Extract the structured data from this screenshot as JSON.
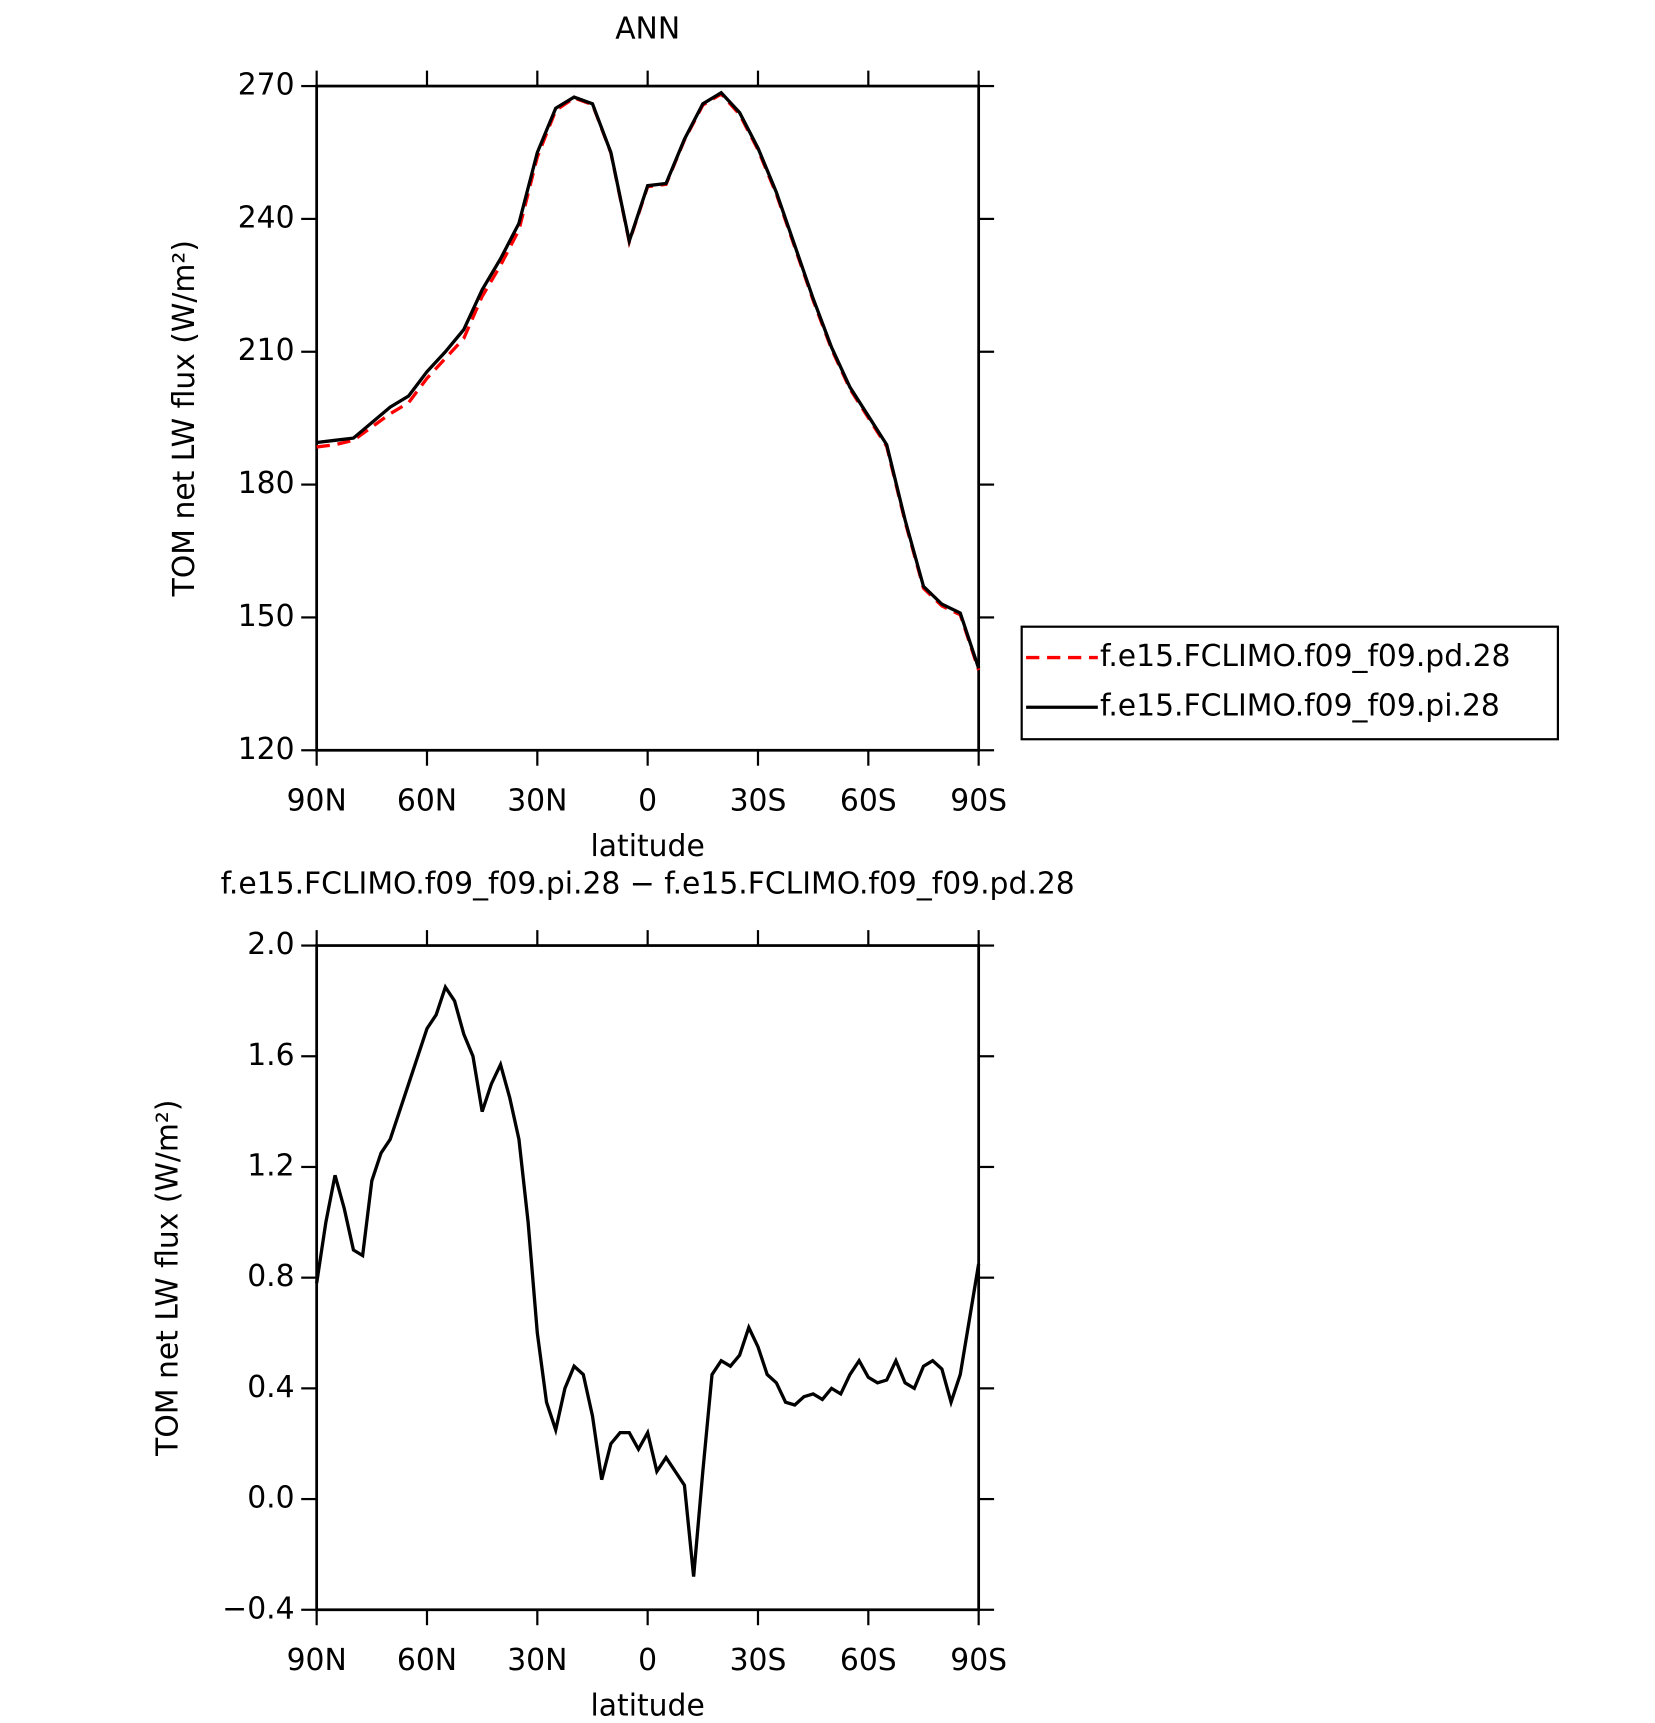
{
  "chart_data": [
    {
      "type": "line",
      "title": "ANN",
      "xlabel": "latitude",
      "ylabel": "TOM net LW flux (W/m²)",
      "x": [
        90,
        85,
        80,
        75,
        70,
        65,
        60,
        55,
        50,
        45,
        40,
        35,
        30,
        25,
        20,
        15,
        10,
        5,
        0,
        -5,
        -10,
        -15,
        -20,
        -25,
        -30,
        -35,
        -40,
        -45,
        -50,
        -55,
        -60,
        -65,
        -70,
        -75,
        -80,
        -85,
        -90
      ],
      "series": [
        {
          "name": "f.e15.FCLIMO.f09_f09.pd.28",
          "color": "#ff0000",
          "dash": true,
          "values": [
            188.5,
            189,
            190,
            193,
            196,
            198.5,
            204,
            208.5,
            213,
            222.5,
            229.5,
            237.5,
            254,
            264.5,
            267.3,
            265.8,
            254.9,
            234.8,
            247.3,
            247.8,
            257.8,
            265.7,
            268.2,
            263.6,
            255.6,
            245.6,
            233.6,
            221.6,
            210.6,
            201.6,
            195.1,
            188.6,
            171.6,
            156.6,
            152.6,
            150.6,
            138.1
          ]
        },
        {
          "name": "f.e15.FCLIMO.f09_f09.pi.28",
          "color": "#000000",
          "dash": false,
          "values": [
            189.5,
            190,
            190.5,
            194,
            197.5,
            200,
            205.5,
            210,
            215,
            224,
            231,
            239,
            255,
            265,
            267.5,
            266,
            255,
            235,
            247.5,
            248,
            258,
            266,
            268.5,
            264,
            256,
            246,
            234,
            222,
            211,
            202,
            195.5,
            189,
            172,
            157,
            153,
            151,
            138.5
          ]
        }
      ],
      "xlim": [
        90,
        -90
      ],
      "xticks": [
        {
          "value": 90,
          "label": "90N"
        },
        {
          "value": 60,
          "label": "60N"
        },
        {
          "value": 30,
          "label": "30N"
        },
        0,
        {
          "value": -30,
          "label": "30S"
        },
        {
          "value": -60,
          "label": "60S"
        },
        {
          "value": -90,
          "label": "90S"
        }
      ],
      "ylim": [
        120,
        270
      ],
      "yticks": [
        120,
        150,
        180,
        210,
        240,
        270
      ],
      "legend": "right"
    },
    {
      "type": "line",
      "title": "f.e15.FCLIMO.f09_f09.pi.28 − f.e15.FCLIMO.f09_f09.pd.28",
      "xlabel": "latitude",
      "ylabel": "TOM net LW flux (W/m²)",
      "x": [
        90,
        87.5,
        85,
        82.5,
        80,
        77.5,
        75,
        72.5,
        70,
        67.5,
        65,
        62.5,
        60,
        57.5,
        55,
        52.5,
        50,
        47.5,
        45,
        42.5,
        40,
        37.5,
        35,
        32.5,
        30,
        27.5,
        25,
        22.5,
        20,
        17.5,
        15,
        12.5,
        10,
        7.5,
        5,
        2.5,
        0,
        -2.5,
        -5,
        -7.5,
        -10,
        -12.5,
        -15,
        -17.5,
        -20,
        -22.5,
        -25,
        -27.5,
        -30,
        -32.5,
        -35,
        -37.5,
        -40,
        -42.5,
        -45,
        -47.5,
        -50,
        -52.5,
        -55,
        -57.5,
        -60,
        -62.5,
        -65,
        -67.5,
        -70,
        -72.5,
        -75,
        -77.5,
        -80,
        -82.5,
        -85,
        -87.5,
        -90
      ],
      "series": [
        {
          "color": "#000000",
          "values": [
            0.78,
            1.0,
            1.17,
            1.05,
            0.9,
            0.88,
            1.15,
            1.25,
            1.3,
            1.4,
            1.5,
            1.6,
            1.7,
            1.75,
            1.85,
            1.8,
            1.68,
            1.6,
            1.4,
            1.5,
            1.57,
            1.45,
            1.3,
            1.0,
            0.6,
            0.35,
            0.25,
            0.4,
            0.48,
            0.45,
            0.3,
            0.07,
            0.2,
            0.24,
            0.24,
            0.18,
            0.24,
            0.1,
            0.15,
            0.1,
            0.05,
            -0.28,
            0.1,
            0.45,
            0.5,
            0.48,
            0.52,
            0.62,
            0.55,
            0.45,
            0.42,
            0.35,
            0.34,
            0.37,
            0.38,
            0.36,
            0.4,
            0.38,
            0.45,
            0.5,
            0.44,
            0.42,
            0.43,
            0.5,
            0.42,
            0.4,
            0.48,
            0.5,
            0.47,
            0.35,
            0.45,
            0.65,
            0.85
          ]
        }
      ],
      "xlim": [
        90,
        -90
      ],
      "xticks": [
        {
          "value": 90,
          "label": "90N"
        },
        {
          "value": 60,
          "label": "60N"
        },
        {
          "value": 30,
          "label": "30N"
        },
        0,
        {
          "value": -30,
          "label": "30S"
        },
        {
          "value": -60,
          "label": "60S"
        },
        {
          "value": -90,
          "label": "90S"
        }
      ],
      "ylim": [
        -0.4,
        2
      ],
      "yticks": [
        {
          "value": -0.4,
          "label": "−0.4"
        },
        {
          "value": 0,
          "label": "0.0"
        },
        0.4,
        0.8,
        1.2,
        1.6,
        {
          "value": 2,
          "label": "2.0"
        }
      ]
    }
  ]
}
